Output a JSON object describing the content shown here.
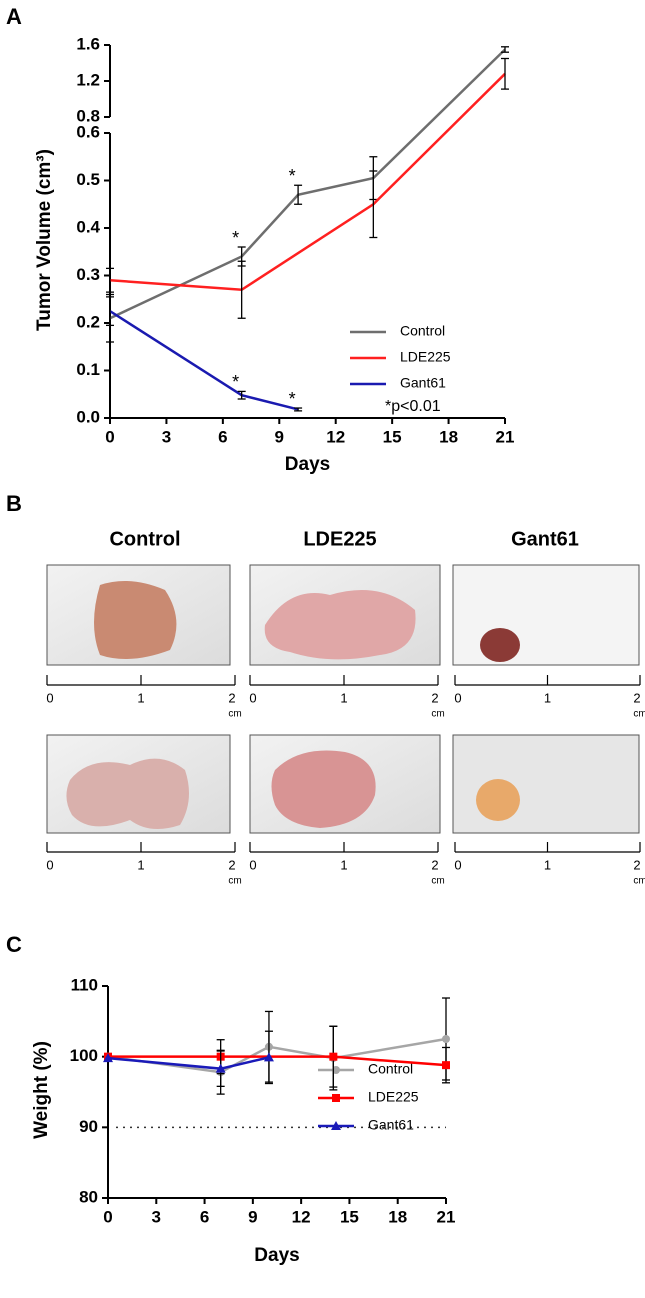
{
  "panel_labels": [
    "A",
    "B",
    "C"
  ],
  "chart_data": [
    {
      "type": "line",
      "ylabel": "Tumor Volume (cm³)",
      "xlabel": "Days",
      "xlim": [
        0,
        21
      ],
      "xticks": [
        0,
        3,
        6,
        9,
        12,
        15,
        18,
        21
      ],
      "y_segments": [
        {
          "ylim": [
            0,
            0.6
          ],
          "yticks": [
            {
              "value": 0,
              "label": "0.0"
            },
            0.1,
            0.2,
            0.3,
            0.4,
            0.5,
            0.6
          ]
        },
        {
          "ylim": [
            0.8,
            1.6
          ],
          "yticks": [
            0.8,
            1.2,
            1.6
          ]
        }
      ],
      "series": [
        {
          "name": "Control",
          "color": "#6e6e6e",
          "x": [
            0,
            7,
            10,
            14,
            21
          ],
          "values": [
            0.21,
            0.34,
            0.47,
            0.505,
            1.55
          ],
          "errors": [
            0.05,
            0.02,
            0.02,
            0.045,
            0.03
          ],
          "annotations": [
            null,
            "*",
            "*",
            null,
            null
          ]
        },
        {
          "name": "LDE225",
          "color": "#ff2020",
          "x": [
            0,
            7,
            14,
            21
          ],
          "values": [
            0.29,
            0.27,
            0.45,
            1.28
          ],
          "errors": [
            0.025,
            0.06,
            0.07,
            0.17
          ],
          "annotations": [
            null,
            null,
            null,
            null
          ]
        },
        {
          "name": "Gant61",
          "color": "#1a1ab0",
          "x": [
            0,
            7,
            10
          ],
          "values": [
            0.225,
            0.048,
            0.018
          ],
          "errors": [
            0.03,
            0.008,
            0.003
          ],
          "annotations": [
            null,
            "*",
            "*"
          ]
        }
      ],
      "note": "*p<0.01",
      "legend": "lower right"
    },
    {
      "type": "line",
      "ylabel": "Weight (%)",
      "xlabel": "Days",
      "xlim": [
        0,
        21
      ],
      "xticks": [
        0,
        3,
        6,
        9,
        12,
        15,
        18,
        21
      ],
      "y_segments": [
        {
          "ylim": [
            80,
            110
          ],
          "yticks": [
            80,
            90,
            100,
            110
          ]
        }
      ],
      "reference_line": 90,
      "series": [
        {
          "name": "Control",
          "color": "#a6a6a6",
          "marker": "circle",
          "x": [
            0,
            7,
            10,
            14,
            21
          ],
          "values": [
            100,
            97.8,
            101.4,
            99.8,
            102.5
          ],
          "errors": [
            null,
            3.1,
            5,
            4.5,
            5.8
          ]
        },
        {
          "name": "LDE225",
          "color": "#ff0000",
          "marker": "square",
          "x": [
            0,
            7,
            14,
            21
          ],
          "values": [
            100,
            100,
            100,
            98.8
          ],
          "errors": [
            null,
            2.4,
            4.3,
            2.5
          ]
        },
        {
          "name": "Gant61",
          "color": "#1a1ab8",
          "marker": "triangle",
          "x": [
            0,
            7,
            10
          ],
          "values": [
            99.8,
            98.3,
            99.9
          ],
          "errors": [
            null,
            2.5,
            3.7
          ]
        }
      ],
      "legend": "lower right"
    }
  ],
  "photos": {
    "columns": [
      "Control",
      "LDE225",
      "Gant61"
    ],
    "ruler": {
      "ticks": [
        0,
        1,
        2
      ],
      "unit": "cm"
    }
  }
}
